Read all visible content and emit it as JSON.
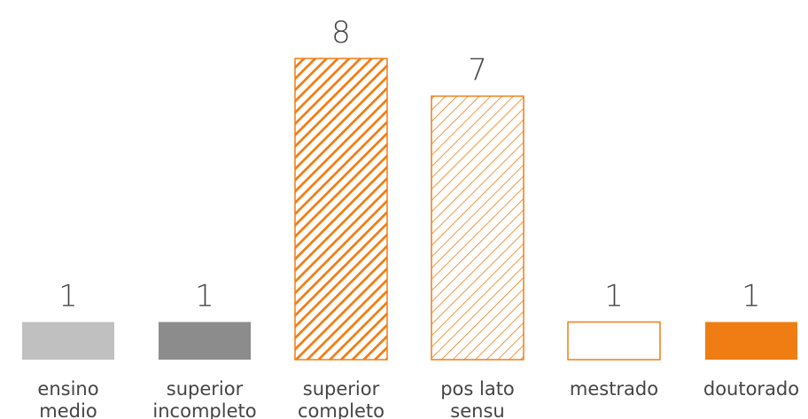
{
  "chart_data": {
    "type": "bar",
    "categories": [
      [
        "ensino",
        "medio"
      ],
      [
        "superior",
        "incompleto"
      ],
      [
        "superior",
        "completo"
      ],
      [
        "pos lato",
        "sensu"
      ],
      [
        "mestrado"
      ],
      [
        "doutorado"
      ]
    ],
    "values": [
      1,
      1,
      8,
      7,
      1,
      1
    ],
    "bar_styles": [
      "solid-light-gray",
      "solid-dark-gray",
      "dense-orange-hatch",
      "light-orange-hatch",
      "orange-outline",
      "solid-orange"
    ],
    "colors": {
      "light_gray": "#c0c0c0",
      "dark_gray": "#8c8c8c",
      "orange": "#f07d13",
      "text": "#444444"
    },
    "title": "",
    "xlabel": "",
    "ylabel": "",
    "ylim": [
      0,
      8
    ],
    "grid": false,
    "legend": "none"
  }
}
